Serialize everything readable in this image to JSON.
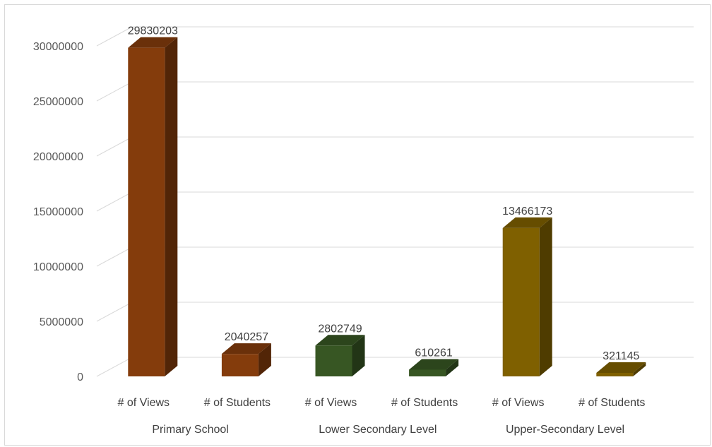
{
  "chart_data": {
    "type": "bar",
    "groups": [
      "Primary School",
      "Lower Secondary Level",
      "Upper-Secondary Level"
    ],
    "categories": [
      "# of Views",
      "# of Students",
      "# of Views",
      "# of Students",
      "# of Views",
      "# of Students"
    ],
    "values": [
      29830203,
      2040257,
      2802749,
      610261,
      13466173,
      321145
    ],
    "data_labels": [
      "29830203",
      "2040257",
      "2802749",
      "610261",
      "13466173",
      "321145"
    ],
    "group_colors": [
      "#843c0c",
      "#375623",
      "#7f6000"
    ],
    "y_ticks": [
      "0",
      "5000000",
      "10000000",
      "15000000",
      "20000000",
      "25000000",
      "30000000"
    ],
    "ylim": [
      0,
      30000000
    ],
    "grid": true,
    "legend": "none",
    "style": "3d-column"
  }
}
